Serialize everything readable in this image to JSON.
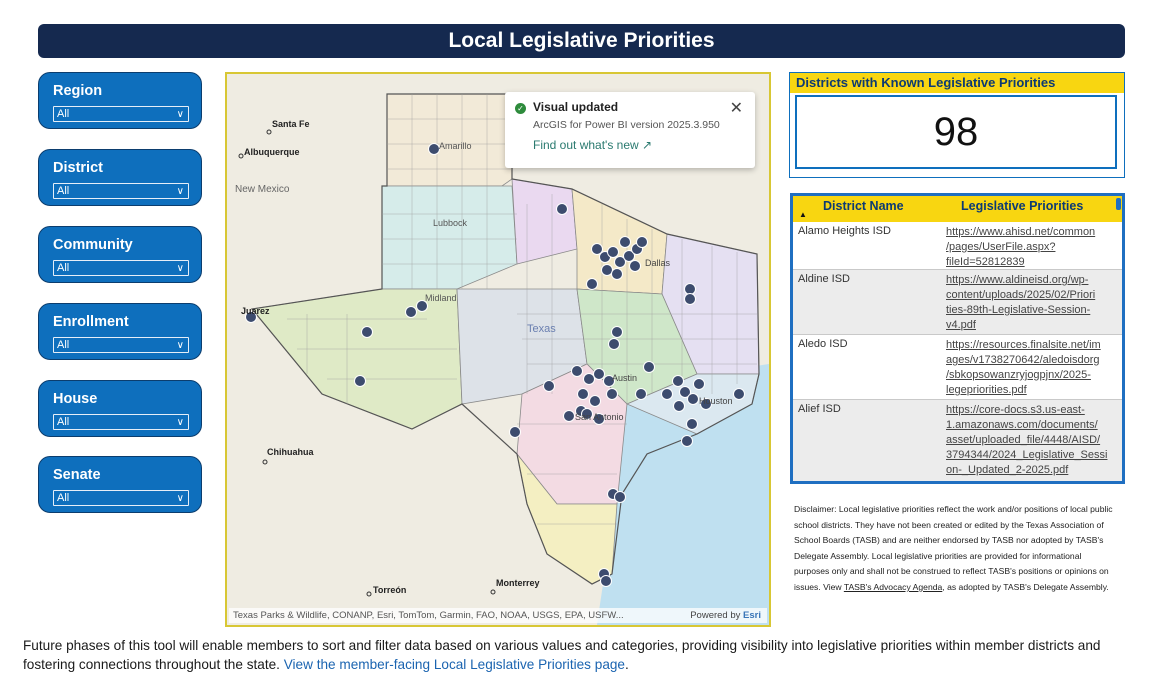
{
  "page": {
    "title": "Local Legislative Priorities"
  },
  "filters": [
    {
      "label": "Region",
      "value": "All"
    },
    {
      "label": "District",
      "value": "All"
    },
    {
      "label": "Community",
      "value": "All"
    },
    {
      "label": "Enrollment",
      "value": "All"
    },
    {
      "label": "House",
      "value": "All"
    },
    {
      "label": "Senate",
      "value": "All"
    }
  ],
  "map": {
    "places": {
      "santa_fe": "Santa Fe",
      "albuquerque": "Albuquerque",
      "amarillo": "Amarillo",
      "new_mexico": "New Mexico",
      "lubbock": "Lubbock",
      "juarez": "Juarez",
      "midland": "Midland",
      "texas": "Texas",
      "dallas": "Dallas",
      "austin": "Austin",
      "san_antonio": "San Antonio",
      "houston": "Houston",
      "chihuahua": "Chihuahua",
      "torreon": "Torreón",
      "monterrey": "Monterrey"
    },
    "attribution": "Texas Parks & Wildlife, CONANP, Esri, TomTom, Garmin, FAO, NOAA, USGS, EPA, USFW...",
    "powered_by_prefix": "Powered by",
    "powered_by_brand": "Esri",
    "colors": {
      "marker": "#3d4c6e",
      "marker_stroke": "#ffffff"
    }
  },
  "toast": {
    "title": "Visual updated",
    "subtitle": "ArcGIS for Power BI version 2025.3.950",
    "link": "Find out what's new",
    "icon": "check-circle-icon"
  },
  "kpi": {
    "title": "Districts with Known Legislative Priorities",
    "value": "98"
  },
  "table": {
    "headers": [
      "District Name",
      "Legislative Priorities"
    ],
    "rows": [
      {
        "district": "Alamo Heights ISD",
        "link_lines": [
          "https://www.ahisd.net/common",
          "/pages/UserFile.aspx?",
          "fileId=52812839"
        ]
      },
      {
        "district": "Aldine ISD",
        "link_lines": [
          "https://www.aldineisd.org/wp-",
          "content/uploads/2025/02/Priori",
          "ties-89th-Legislative-Session-",
          "v4.pdf"
        ]
      },
      {
        "district": "Aledo ISD",
        "link_lines": [
          "https://resources.finalsite.net/im",
          "ages/v1738270642/aledoisdorg",
          "/sbkopsowanzryjogpjnx/2025-",
          "legepriorities.pdf"
        ]
      },
      {
        "district": "Alief ISD",
        "link_lines": [
          "https://core-docs.s3.us-east-",
          "1.amazonaws.com/documents/",
          "asset/uploaded_file/4448/AISD/",
          "3794344/2024_Legislative_Sessi",
          "on-_Updated_2-2025.pdf"
        ]
      }
    ]
  },
  "disclaimer": {
    "before": "Disclaimer: Local legislative priorities reflect the work and/or positions of local public school districts. They have not been created or edited by the Texas Association of School Boards (TASB) and are neither endorsed by TASB nor adopted by TASB's Delegate Assembly. Local legislative priorities are provided for informational purposes only and shall not be construed to reflect TASB's positions or opinions on issues. View ",
    "link": "TASB's Advocacy Agenda",
    "after": ", as adopted by TASB's Delegate Assembly."
  },
  "footer": {
    "text": "Future phases of this tool will enable members to sort and filter data based on various values and categories, providing visibility into legislative priorities within member districts and fostering connections throughout the state. ",
    "link": "View the member-facing Local Legislative Priorities page",
    "end": "."
  }
}
